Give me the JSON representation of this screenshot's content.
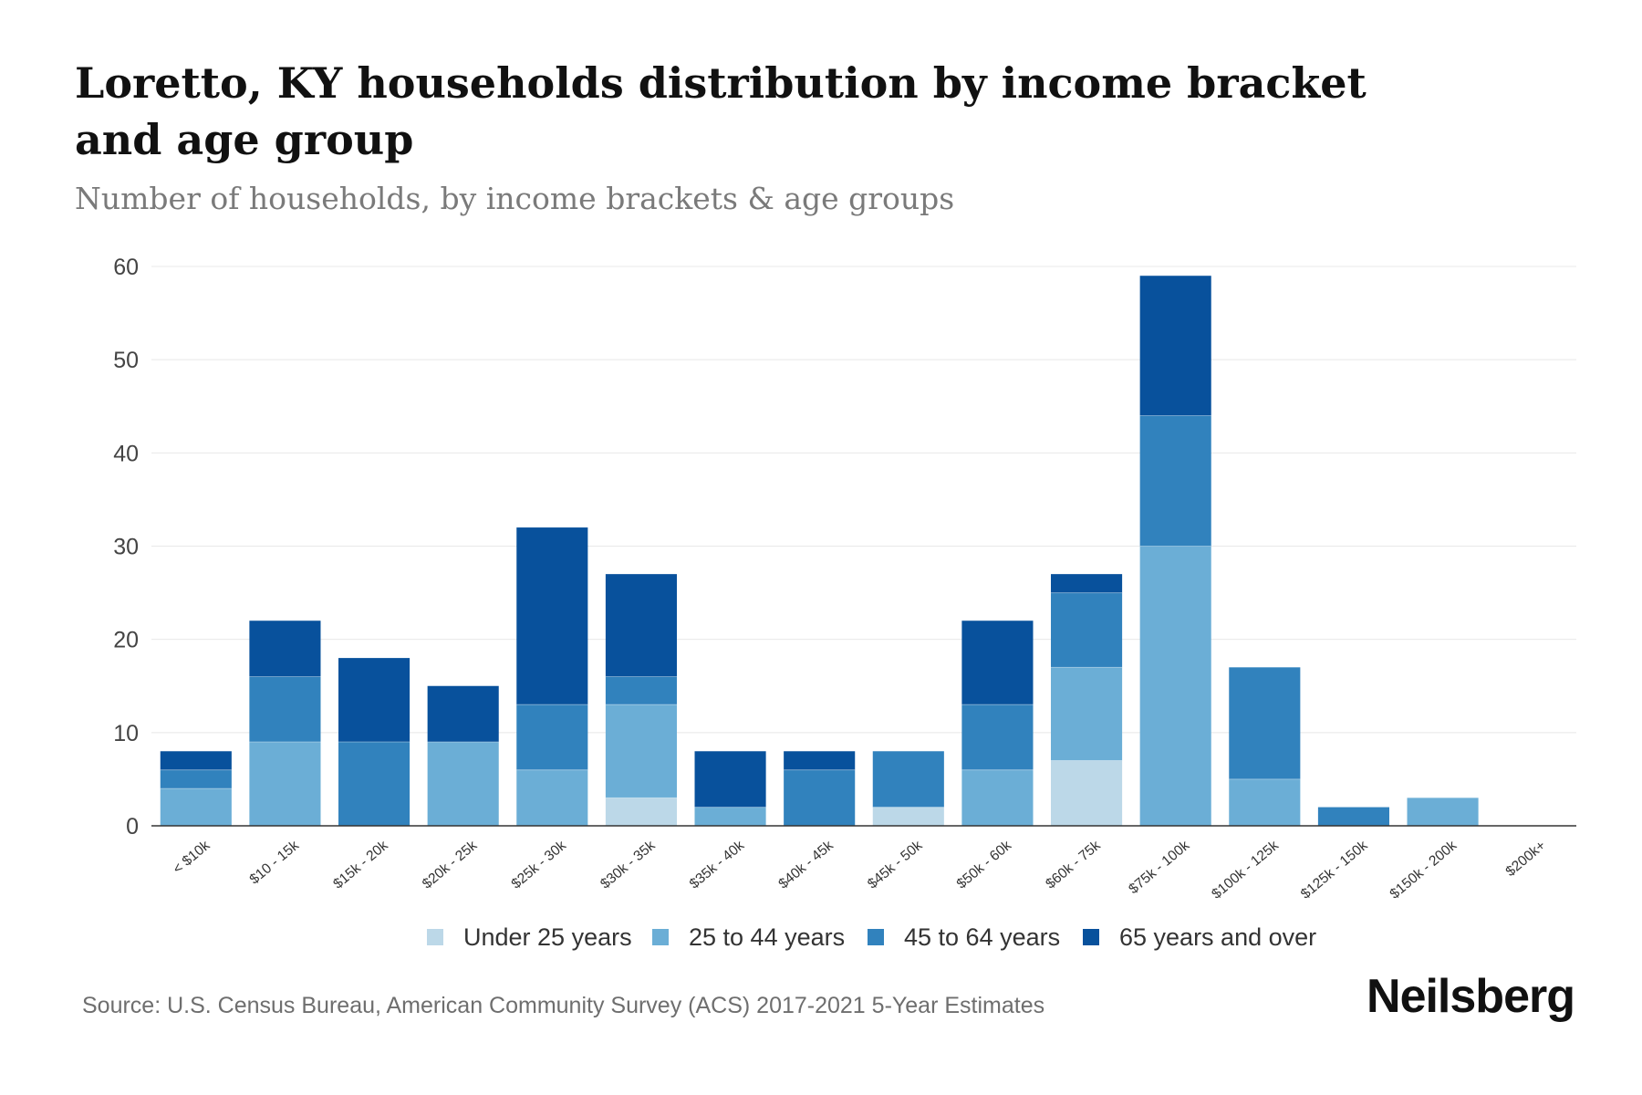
{
  "title": "Loretto, KY households distribution by income bracket and age group",
  "subtitle": "Number of households, by income brackets & age groups",
  "source": "Source: U.S. Census Bureau, American Community Survey (ACS) 2017-2021 5-Year Estimates",
  "brand": "Neilsberg",
  "chart_data": {
    "type": "bar",
    "stacked": true,
    "categories": [
      "< $10k",
      "$10 - 15k",
      "$15k - 20k",
      "$20k - 25k",
      "$25k - 30k",
      "$30k - 35k",
      "$35k - 40k",
      "$40k - 45k",
      "$45k - 50k",
      "$50k - 60k",
      "$60k - 75k",
      "$75k - 100k",
      "$100k - 125k",
      "$125k - 150k",
      "$150k - 200k",
      "$200k+"
    ],
    "series": [
      {
        "name": "Under 25 years",
        "color": "#bcd8e8",
        "values": [
          0,
          0,
          0,
          0,
          0,
          3,
          0,
          0,
          2,
          0,
          7,
          0,
          0,
          0,
          0,
          0
        ]
      },
      {
        "name": "25 to 44 years",
        "color": "#6baed6",
        "values": [
          4,
          9,
          0,
          9,
          6,
          10,
          2,
          0,
          0,
          6,
          10,
          30,
          5,
          0,
          3,
          0
        ]
      },
      {
        "name": "45 to 64 years",
        "color": "#3182bd",
        "values": [
          2,
          7,
          9,
          0,
          7,
          3,
          0,
          6,
          6,
          7,
          8,
          14,
          12,
          2,
          0,
          0
        ]
      },
      {
        "name": "65 years and over",
        "color": "#08519c",
        "values": [
          2,
          6,
          9,
          6,
          19,
          11,
          6,
          2,
          0,
          9,
          2,
          15,
          0,
          0,
          0,
          0
        ]
      }
    ],
    "y_ticks": [
      0,
      10,
      20,
      30,
      40,
      50,
      60
    ],
    "ylim": [
      0,
      60
    ],
    "xlabel": "",
    "ylabel": "",
    "grid": true,
    "legend_position": "bottom"
  }
}
